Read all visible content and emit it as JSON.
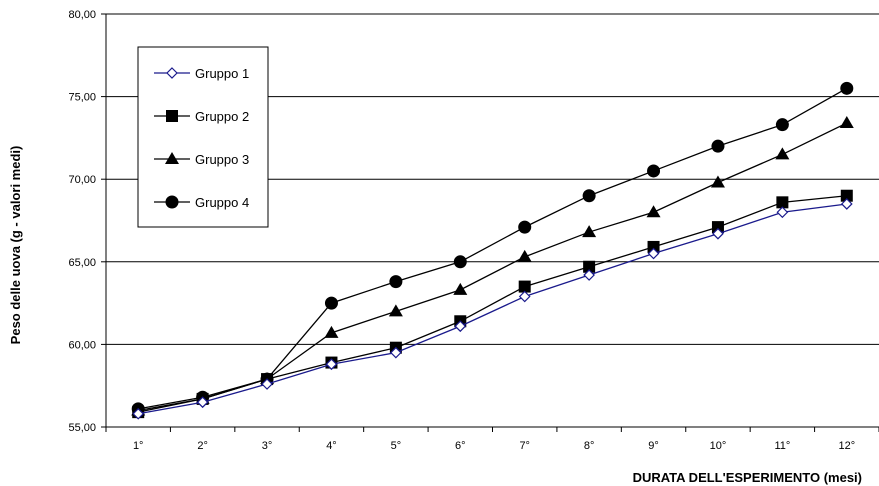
{
  "chart_data": {
    "type": "line",
    "title": "",
    "xlabel": "DURATA DELL'ESPERIMENTO (mesi)",
    "ylabel": "Peso delle uova (g - valori medi)",
    "categories": [
      "1°",
      "2°",
      "3°",
      "4°",
      "5°",
      "6°",
      "7°",
      "8°",
      "9°",
      "10°",
      "11°",
      "12°"
    ],
    "ylim": [
      55,
      80
    ],
    "yticks": [
      "55,00",
      "60,00",
      "65,00",
      "70,00",
      "75,00",
      "80,00"
    ],
    "ytick_values": [
      55,
      60,
      65,
      70,
      75,
      80
    ],
    "grid": "horizontal",
    "legend_position": "top-left",
    "series": [
      {
        "name": "Gruppo 1",
        "marker": "diamond-open",
        "color": "#1a1a8c",
        "values": [
          55.8,
          56.5,
          57.6,
          58.8,
          59.5,
          61.1,
          62.9,
          64.2,
          65.5,
          66.7,
          68.0,
          68.5
        ]
      },
      {
        "name": "Gruppo 2",
        "marker": "square",
        "color": "#000000",
        "values": [
          55.9,
          56.7,
          57.9,
          58.9,
          59.8,
          61.4,
          63.5,
          64.7,
          65.9,
          67.1,
          68.6,
          69.0
        ]
      },
      {
        "name": "Gruppo 3",
        "marker": "triangle",
        "color": "#000000",
        "values": [
          56.0,
          56.7,
          57.9,
          60.7,
          62.0,
          63.3,
          65.3,
          66.8,
          68.0,
          69.8,
          71.5,
          73.4
        ]
      },
      {
        "name": "Gruppo 4",
        "marker": "circle",
        "color": "#000000",
        "values": [
          56.1,
          56.8,
          57.9,
          62.5,
          63.8,
          65.0,
          67.1,
          69.0,
          70.5,
          72.0,
          73.3,
          75.5
        ]
      }
    ]
  }
}
